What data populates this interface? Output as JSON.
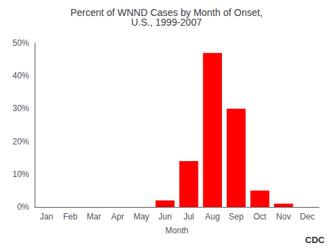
{
  "chart_data": {
    "type": "bar",
    "title": "Percent of WNND Cases by Month of Onset,\nU.S., 1999-2007",
    "xlabel": "Month",
    "categories": [
      "Jan",
      "Feb",
      "Mar",
      "Apr",
      "May",
      "Jun",
      "Jul",
      "Aug",
      "Sep",
      "Oct",
      "Nov",
      "Dec"
    ],
    "values": [
      0,
      0,
      0,
      0,
      0,
      2,
      14,
      47,
      30,
      5,
      1,
      0
    ],
    "color": "#ff0000",
    "ylim": [
      0,
      50
    ],
    "yticks": [
      {
        "value": 0,
        "label": "0%"
      },
      {
        "value": 10,
        "label": "10%"
      },
      {
        "value": 20,
        "label": "20%"
      },
      {
        "value": 30,
        "label": "30%"
      },
      {
        "value": 40,
        "label": "40%"
      },
      {
        "value": 50,
        "label": "50%"
      }
    ],
    "grid": false,
    "annotations": [
      "CDC"
    ]
  }
}
